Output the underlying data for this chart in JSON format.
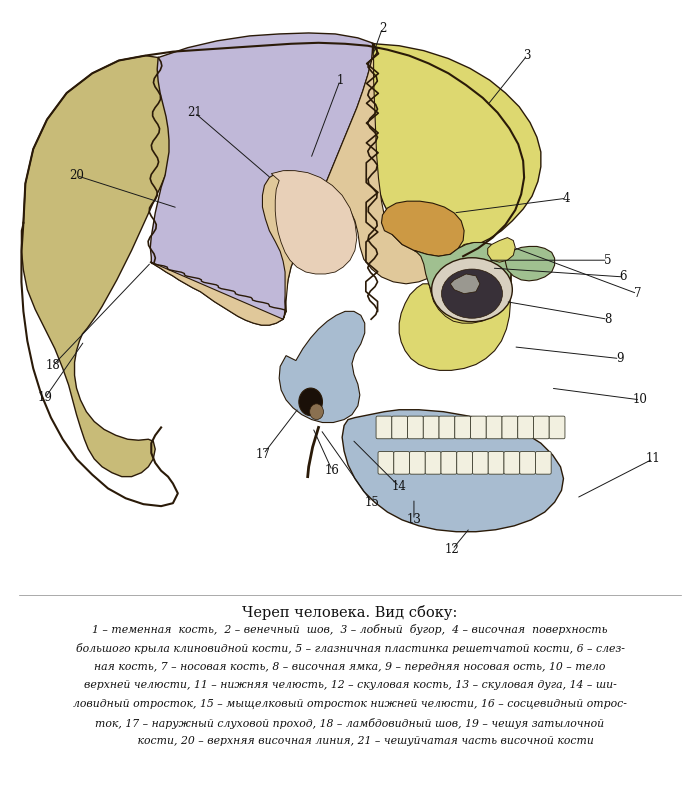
{
  "caption_title": "Череп человека. Вид сбоку:",
  "caption_lines": [
    "1 – теменная  кость,  2 – венечный  шов,  3 – лобный  бугор,  4 – височная  поверхность",
    "большого крыла клиновидной кости, 5 – глазничная пластинка решетчатой кости, 6 – слез­",
    "ная кость, 7 – носовая кость, 8 – височная ямка, 9 – передняя носовая ость, 10 – тело",
    "верхней челюсти, 11 – нижняя челюсть, 12 – скуловая кость, 13 – скуловая дуга, 14 – ши­",
    "ловидный отросток, 15 – мыщелковый отросток нижней челюсти, 16 – сосцевидный отрос­",
    "ток, 17 – наружный слуховой проход, 18 – ламбдовидный шов, 19 – чешуя затылочной",
    "         кости, 20 – верхняя височная линия, 21 – чешуйчатая часть височной кости"
  ],
  "background_color": "#ffffff",
  "colors": {
    "parietal": "#c0b8d8",
    "frontal": "#ddd870",
    "temporal": "#e0c89a",
    "temporal_inner": "#d8bfa0",
    "occipital": "#c8bb78",
    "sphenoid": "#cc9944",
    "zygomatic": "#a0c090",
    "maxilla": "#ddd870",
    "mandible": "#a8bcd0",
    "nasal": "#ddd870",
    "outline": "#2a1a08",
    "suture": "#2a1a08",
    "teeth": "#f2f0e0",
    "orbit_dark": "#383030",
    "ear_dark": "#2a1a08",
    "mastoid": "#c8aa80",
    "styloid": "#b8a070"
  },
  "figsize": [
    7.0,
    7.87
  ],
  "dpi": 100
}
